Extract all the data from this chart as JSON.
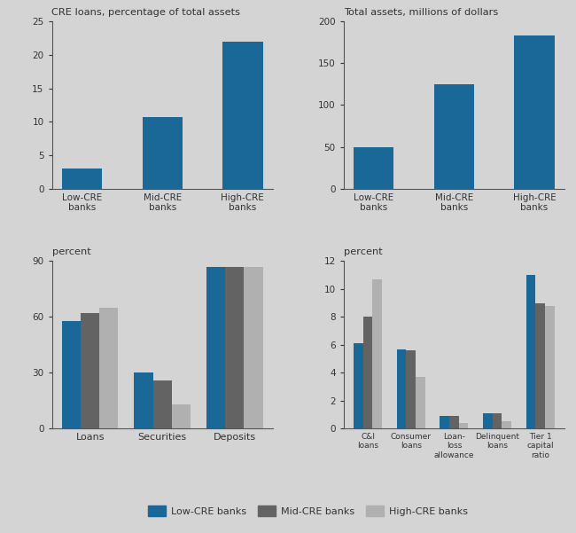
{
  "background_color": "#d4d4d4",
  "blue_color": "#1a6898",
  "mid_gray_color": "#636363",
  "light_gray_color": "#b0b0b0",
  "top_left": {
    "title": "CRE loans, percentage of total assets",
    "categories": [
      "Low-CRE\nbanks",
      "Mid-CRE\nbanks",
      "High-CRE\nbanks"
    ],
    "values": [
      3.0,
      10.7,
      22.0
    ],
    "ylim": [
      0,
      25
    ],
    "yticks": [
      0,
      5,
      10,
      15,
      20,
      25
    ]
  },
  "top_right": {
    "title": "Total assets, millions of dollars",
    "categories": [
      "Low-CRE\nbanks",
      "Mid-CRE\nbanks",
      "High-CRE\nbanks"
    ],
    "values": [
      50,
      125,
      183
    ],
    "ylim": [
      0,
      200
    ],
    "yticks": [
      0,
      50,
      100,
      150,
      200
    ]
  },
  "bottom_left": {
    "ylabel": "percent",
    "categories": [
      "Loans",
      "Securities",
      "Deposits"
    ],
    "low_cre": [
      58,
      30,
      87
    ],
    "mid_cre": [
      62,
      26,
      87
    ],
    "high_cre": [
      65,
      13,
      87
    ],
    "ylim": [
      0,
      90
    ],
    "yticks": [
      0,
      30,
      60,
      90
    ]
  },
  "bottom_right": {
    "ylabel": "percent",
    "categories": [
      "C&I\nloans",
      "Consumer\nloans",
      "Loan-\nloss\nallowance",
      "Delinquent\nloans",
      "Tier 1\ncapital\nratio"
    ],
    "low_cre": [
      6.1,
      5.7,
      0.9,
      1.1,
      11.0
    ],
    "mid_cre": [
      8.0,
      5.6,
      0.9,
      1.1,
      9.0
    ],
    "high_cre": [
      10.7,
      3.7,
      0.4,
      0.5,
      8.8
    ],
    "ylim": [
      0,
      12
    ],
    "yticks": [
      0,
      2,
      4,
      6,
      8,
      10,
      12
    ]
  },
  "legend": {
    "low_cre_label": "Low-CRE banks",
    "mid_cre_label": "Mid-CRE banks",
    "high_cre_label": "High-CRE banks"
  }
}
